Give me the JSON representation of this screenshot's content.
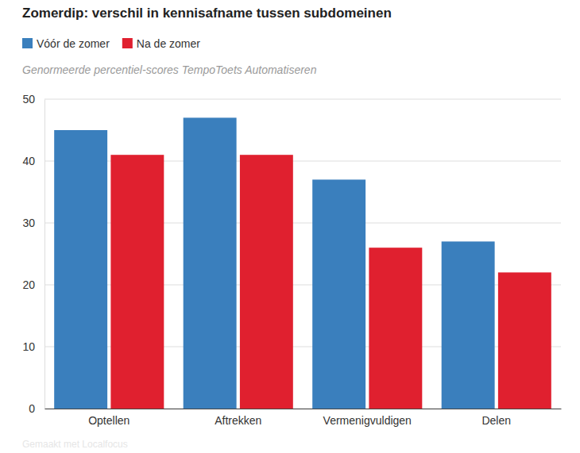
{
  "chart_data": {
    "type": "bar",
    "title": "Zomerdip: verschil in kennisafname tussen subdomeinen",
    "subtitle": "Genormeerde percentiel-scores TempoToets Automatiseren",
    "source": "Gemaakt met Localfocus",
    "categories": [
      "Optellen",
      "Aftrekken",
      "Vermenigvuldigen",
      "Delen"
    ],
    "series": [
      {
        "name": "Vóór de zomer",
        "color": "#3a7fbd",
        "values": [
          45,
          47,
          37,
          27
        ]
      },
      {
        "name": "Na de zomer",
        "color": "#e0202f",
        "values": [
          41,
          41,
          26,
          22
        ]
      }
    ],
    "ylim": [
      0,
      50
    ],
    "yticks": [
      0,
      10,
      20,
      30,
      40,
      50
    ],
    "grid": true,
    "legend": "top"
  }
}
